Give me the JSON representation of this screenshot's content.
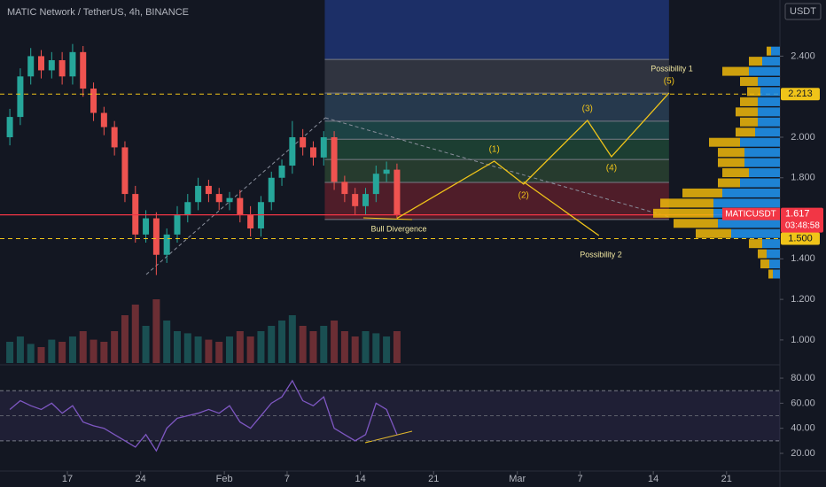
{
  "chart_data": {
    "type": "candlestick",
    "title": "MATIC Network / TetherUS, 4h, BINANCE",
    "currency": "USDT",
    "x": [
      10.5,
      11.5,
      12.5,
      13.5,
      14.5,
      15.5,
      16.5,
      17.5,
      18.5,
      19.5,
      20.5,
      21.5,
      22.5,
      23.5,
      24.5,
      25.5,
      26.5,
      27.5,
      28.5,
      29.5,
      30.5,
      31.5,
      32.5,
      33.5,
      34.5,
      35.5,
      36.5,
      37.5,
      38.5,
      39.5,
      40.5,
      41.5,
      42.5,
      43.5,
      44.5,
      45.5,
      46.5,
      47.5
    ],
    "open": [
      2.0,
      2.1,
      2.3,
      2.4,
      2.33,
      2.38,
      2.3,
      2.42,
      2.24,
      2.12,
      2.05,
      1.95,
      1.72,
      1.52,
      1.6,
      1.42,
      1.52,
      1.62,
      1.68,
      1.76,
      1.72,
      1.68,
      1.7,
      1.62,
      1.55,
      1.68,
      1.8,
      1.86,
      2.0,
      1.95,
      1.9,
      2.0,
      1.78,
      1.72,
      1.66,
      1.72,
      1.82,
      1.84
    ],
    "high": [
      2.14,
      2.34,
      2.44,
      2.43,
      2.42,
      2.42,
      2.46,
      2.45,
      2.27,
      2.15,
      2.08,
      1.98,
      1.76,
      1.64,
      1.63,
      1.55,
      1.66,
      1.72,
      1.8,
      1.79,
      1.75,
      1.73,
      1.74,
      1.66,
      1.71,
      1.83,
      1.89,
      2.08,
      2.04,
      1.98,
      2.03,
      2.03,
      1.81,
      1.75,
      1.75,
      1.86,
      1.88,
      1.87
    ],
    "low": [
      1.96,
      2.06,
      2.26,
      2.29,
      2.29,
      2.26,
      2.26,
      2.2,
      2.08,
      2.01,
      1.91,
      1.68,
      1.48,
      1.48,
      1.32,
      1.38,
      1.48,
      1.58,
      1.64,
      1.68,
      1.64,
      1.64,
      1.58,
      1.51,
      1.51,
      1.64,
      1.76,
      1.82,
      1.91,
      1.86,
      1.86,
      1.74,
      1.68,
      1.62,
      1.62,
      1.68,
      1.78,
      1.6
    ],
    "close": [
      2.1,
      2.3,
      2.4,
      2.33,
      2.38,
      2.3,
      2.42,
      2.24,
      2.12,
      2.05,
      1.95,
      1.72,
      1.52,
      1.6,
      1.42,
      1.52,
      1.62,
      1.68,
      1.76,
      1.72,
      1.68,
      1.7,
      1.62,
      1.55,
      1.68,
      1.8,
      1.86,
      2.0,
      1.95,
      1.9,
      2.0,
      1.78,
      1.72,
      1.66,
      1.72,
      1.82,
      1.84,
      1.62
    ],
    "volume": [
      20,
      25,
      18,
      15,
      22,
      20,
      25,
      30,
      22,
      20,
      30,
      45,
      55,
      35,
      60,
      40,
      30,
      28,
      25,
      22,
      20,
      25,
      30,
      25,
      30,
      35,
      40,
      45,
      35,
      30,
      35,
      40,
      30,
      25,
      30,
      28,
      25,
      30
    ],
    "volume_ylim": [
      0,
      100
    ],
    "rsi": [
      55,
      62,
      58,
      55,
      60,
      52,
      58,
      45,
      42,
      40,
      35,
      30,
      25,
      35,
      22,
      40,
      48,
      50,
      52,
      55,
      52,
      58,
      45,
      40,
      50,
      60,
      65,
      78,
      62,
      58,
      65,
      40,
      35,
      30,
      35,
      60,
      55,
      35
    ],
    "rsi_band": [
      30,
      70
    ],
    "rsi_mid": 50,
    "xlim": [
      9.56,
      84.1
    ],
    "xticks": [
      {
        "value": 16,
        "label": "17"
      },
      {
        "value": 23,
        "label": "24"
      },
      {
        "value": 31,
        "label": "Feb"
      },
      {
        "value": 37,
        "label": "7"
      },
      {
        "value": 44,
        "label": "14"
      },
      {
        "value": 51,
        "label": "21"
      },
      {
        "value": 59,
        "label": "Mar"
      },
      {
        "value": 65,
        "label": "7"
      },
      {
        "value": 72,
        "label": "14"
      },
      {
        "value": 79,
        "label": "21"
      }
    ],
    "ylim": [
      0.886,
      2.677
    ],
    "yticks": [
      {
        "value": 2.4,
        "label": "2.400"
      },
      {
        "value": 2.0,
        "label": "2.000"
      },
      {
        "value": 1.8,
        "label": "1.800"
      },
      {
        "value": 1.4,
        "label": "1.400"
      },
      {
        "value": 1.2,
        "label": "1.200"
      },
      {
        "value": 1.0,
        "label": "1.000"
      }
    ],
    "rsi_ylim": [
      7.3,
      88.5
    ],
    "rsi_ticks": [
      {
        "value": 80,
        "label": "80.00"
      },
      {
        "value": 60,
        "label": "60.00"
      },
      {
        "value": 40,
        "label": "40.00"
      },
      {
        "value": 20,
        "label": "20.00"
      }
    ],
    "up_color": "#26a69a",
    "down_color": "#ef5350",
    "rsi_color": "#7e57c2",
    "symbol": "MATICUSDT",
    "last_price": 1.617,
    "countdown": "03:48:58",
    "levels": [
      {
        "value": 2.213,
        "label": "2.213"
      },
      {
        "value": 1.5,
        "label": "1.500"
      }
    ],
    "fib_x": [
      40.6,
      73.5
    ],
    "fib_levels": [
      2.677,
      2.384,
      2.218,
      2.079,
      1.99,
      1.89,
      1.777,
      1.594
    ],
    "fib_colors": [
      "#1e3473",
      "#363a45",
      "#2a3f55",
      "#1e4a4a",
      "#1f4535",
      "#2a4230",
      "#5a1e2a"
    ],
    "wave_x": [
      47.5,
      56.8,
      59.6,
      65.7,
      68.0,
      73.5
    ],
    "wave_y": [
      1.6,
      1.882,
      1.769,
      2.083,
      1.904,
      2.218
    ],
    "wave_labels": [
      "(1)",
      "(2)",
      "(3)",
      "(4)",
      "(5)"
    ],
    "alt_x": [
      59.6,
      66.8
    ],
    "alt_y": [
      1.78,
      1.515
    ],
    "annotations": [
      "Possibility 1",
      "Possibility 2",
      "Bull Divergence"
    ],
    "volume_profile": {
      "price": [
        2.425,
        2.375,
        2.325,
        2.275,
        2.225,
        2.175,
        2.125,
        2.075,
        2.025,
        1.975,
        1.925,
        1.875,
        1.825,
        1.775,
        1.725,
        1.675,
        1.625,
        1.575,
        1.525,
        1.475,
        1.425,
        1.375,
        1.325
      ],
      "buy": [
        10,
        20,
        35,
        25,
        22,
        25,
        25,
        25,
        28,
        45,
        40,
        40,
        35,
        45,
        65,
        75,
        75,
        70,
        55,
        20,
        15,
        12,
        8
      ],
      "sell": [
        5,
        15,
        30,
        20,
        15,
        20,
        25,
        20,
        22,
        35,
        30,
        30,
        30,
        25,
        45,
        60,
        68,
        50,
        40,
        15,
        10,
        10,
        5
      ]
    }
  }
}
